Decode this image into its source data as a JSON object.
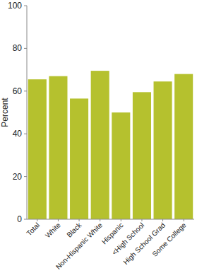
{
  "chart_data": {
    "type": "bar",
    "y_label": "Percent",
    "categories": [
      "Total",
      "White",
      "Black",
      "Non-Hispanic White",
      "Hispanic",
      "<High School",
      "High School Grad",
      "Some College"
    ],
    "values": [
      65.5,
      67,
      56.5,
      69.5,
      50,
      59.5,
      64.5,
      68
    ],
    "color": "#b5c12e",
    "ylim": [
      0,
      100
    ],
    "yticks": [
      0,
      20,
      40,
      60,
      80,
      100
    ],
    "grid": false
  }
}
